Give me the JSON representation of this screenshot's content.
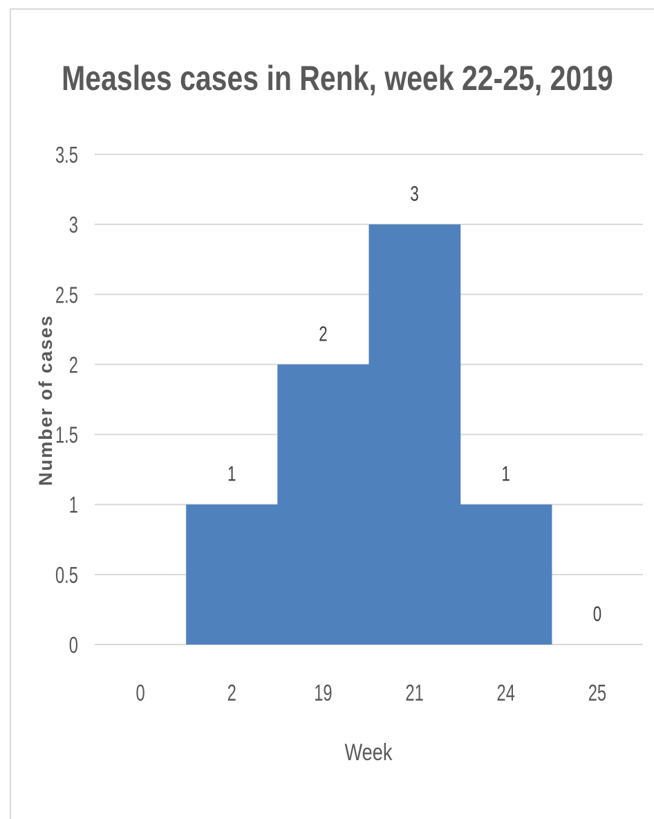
{
  "chart_data": {
    "type": "bar",
    "title": "Measles cases in Renk, week 22-25, 2019",
    "xlabel": "Week",
    "ylabel": "Number of cases",
    "categories": [
      "0",
      "2",
      "19",
      "21",
      "24",
      "25"
    ],
    "values": [
      null,
      1,
      2,
      3,
      1,
      0
    ],
    "data_labels": [
      "",
      "1",
      "2",
      "3",
      "1",
      "0"
    ],
    "yticks": [
      "0",
      "0.5",
      "1",
      "1.5",
      "2",
      "2.5",
      "3",
      "3.5"
    ],
    "ylim": [
      0,
      3.5
    ],
    "gridlines": true,
    "legend": "none",
    "bar_gap": 0,
    "colors": {
      "bar": "#4f81bd",
      "grid": "#d9d9d9",
      "text": "#595959"
    }
  }
}
